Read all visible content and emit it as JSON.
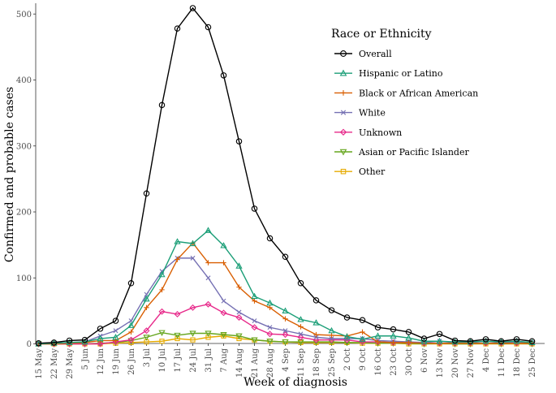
{
  "chart_data": {
    "type": "line",
    "xlabel": "Week of diagnosis",
    "ylabel": "Confirmed and probable cases",
    "ylim": [
      0,
      510
    ],
    "yticks": [
      0,
      100,
      200,
      300,
      400,
      500
    ],
    "grid": false,
    "legend_position": "top-right",
    "legend_title": "Race or Ethnicity",
    "categories": [
      "15 May",
      "22 May",
      "29 May",
      "5 Jun",
      "12 Jun",
      "19 Jun",
      "26 Jun",
      "3 Jul",
      "10 Jul",
      "17 Jul",
      "24 Jul",
      "31 Jul",
      "7 Aug",
      "14 Aug",
      "21 Aug",
      "28 Aug",
      "4 Sep",
      "11 Sep",
      "18 Sep",
      "25 Sep",
      "2 Oct",
      "9 Oct",
      "16 Oct",
      "23 Oct",
      "30 Oct",
      "6 Nov",
      "13 Nov",
      "20 Nov",
      "27 Nov",
      "4 Dec",
      "11 Dec",
      "18 Dec",
      "25 Dec"
    ],
    "series": [
      {
        "name": "Overall",
        "color": "#000000",
        "marker": "circle",
        "values": [
          1,
          2,
          5,
          6,
          23,
          35,
          92,
          228,
          362,
          478,
          509,
          480,
          407,
          307,
          205,
          160,
          132,
          92,
          66,
          51,
          40,
          36,
          25,
          22,
          18,
          8,
          15,
          5,
          4,
          7,
          4,
          7,
          4
        ]
      },
      {
        "name": "Hispanic or Latino",
        "color": "#1b9e77",
        "marker": "triangle-up",
        "values": [
          0,
          1,
          2,
          3,
          8,
          10,
          28,
          68,
          105,
          155,
          152,
          172,
          149,
          118,
          72,
          62,
          50,
          37,
          32,
          20,
          11,
          7,
          12,
          12,
          9,
          4,
          4,
          3,
          3,
          4,
          3,
          4,
          2
        ]
      },
      {
        "name": "Black or African American",
        "color": "#d95f02",
        "marker": "plus",
        "values": [
          0,
          0,
          1,
          2,
          5,
          5,
          18,
          55,
          82,
          128,
          153,
          123,
          123,
          86,
          65,
          55,
          38,
          26,
          14,
          13,
          12,
          18,
          3,
          2,
          2,
          1,
          1,
          1,
          1,
          1,
          1,
          1,
          1
        ]
      },
      {
        "name": "White",
        "color": "#7570b3",
        "marker": "cross",
        "values": [
          0,
          1,
          2,
          3,
          12,
          20,
          35,
          75,
          110,
          130,
          130,
          100,
          65,
          48,
          35,
          25,
          20,
          15,
          10,
          8,
          8,
          8,
          5,
          4,
          3,
          2,
          4,
          2,
          2,
          4,
          2,
          3,
          2
        ]
      },
      {
        "name": "Unknown",
        "color": "#e7298a",
        "marker": "diamond",
        "values": [
          0,
          0,
          0,
          0,
          0,
          3,
          6,
          20,
          49,
          45,
          55,
          60,
          47,
          40,
          25,
          15,
          14,
          10,
          6,
          6,
          6,
          3,
          3,
          2,
          2,
          1,
          1,
          1,
          1,
          1,
          1,
          1,
          1
        ]
      },
      {
        "name": "Asian or Pacific Islander",
        "color": "#66a61e",
        "marker": "triangle-down",
        "values": [
          0,
          0,
          0,
          0,
          1,
          2,
          5,
          10,
          17,
          13,
          16,
          16,
          14,
          12,
          6,
          4,
          3,
          3,
          3,
          3,
          2,
          2,
          1,
          1,
          1,
          0,
          1,
          0,
          0,
          1,
          0,
          1,
          0
        ]
      },
      {
        "name": "Other",
        "color": "#e6ab02",
        "marker": "square",
        "values": [
          0,
          0,
          0,
          0,
          0,
          1,
          2,
          3,
          4,
          8,
          6,
          10,
          12,
          8,
          6,
          4,
          3,
          2,
          2,
          2,
          2,
          1,
          1,
          1,
          0,
          0,
          0,
          0,
          0,
          0,
          0,
          0,
          0
        ]
      }
    ]
  }
}
